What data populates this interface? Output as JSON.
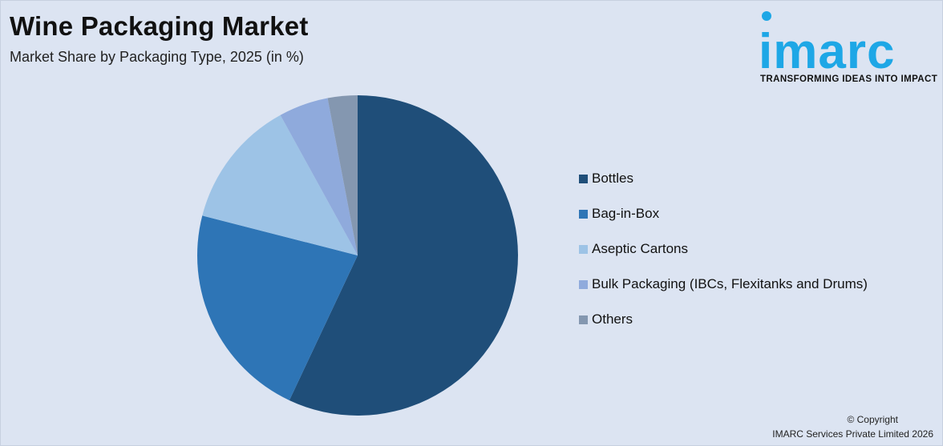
{
  "header": {
    "title": "Wine Packaging Market",
    "subtitle": "Market Share by Packaging Type, 2025 (in %)"
  },
  "logo": {
    "wordmark": "imarc",
    "tagline": "TRANSFORMING IDEAS INTO IMPACT",
    "color": "#1ea7e6"
  },
  "chart_data": {
    "type": "pie",
    "title": "Wine Packaging Market",
    "subtitle": "Market Share by Packaging Type, 2025 (in %)",
    "legend_position": "right",
    "categories": [
      "Bottles",
      "Bag-in-Box",
      "Aseptic Cartons",
      "Bulk Packaging (IBCs, Flexitanks and Drums)",
      "Others"
    ],
    "values": [
      57,
      22,
      13,
      5,
      3
    ],
    "colors": [
      "#1f4e79",
      "#2e75b6",
      "#9dc3e6",
      "#8faadc",
      "#8497b0"
    ]
  },
  "footer": {
    "copyright_line1": "© Copyright",
    "copyright_line2": "IMARC Services Private Limited 2026"
  }
}
